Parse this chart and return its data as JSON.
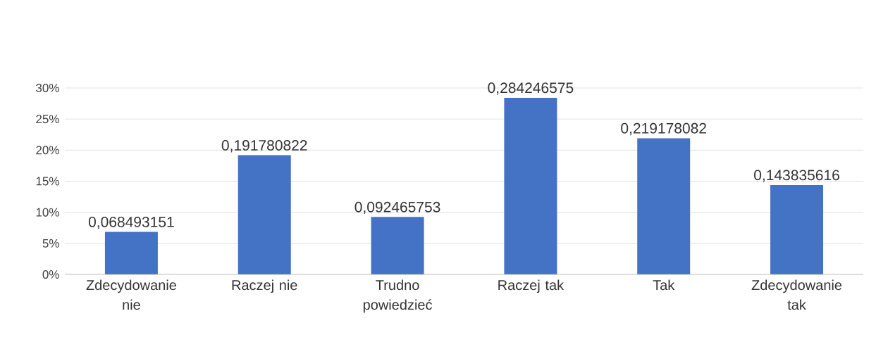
{
  "chart_data": {
    "type": "bar",
    "categories": [
      "Zdecydowanie nie",
      "Raczej nie",
      "Trudno powiedzieć",
      "Raczej tak",
      "Tak",
      "Zdecydowanie tak"
    ],
    "values": [
      0.068493151,
      0.191780822,
      0.092465753,
      0.284246575,
      0.219178082,
      0.143835616
    ],
    "value_labels": [
      "0,068493151",
      "0,191780822",
      "0,092465753",
      "0,284246575",
      "0,219178082",
      "0,143835616"
    ],
    "color": "#4472c4",
    "ylim": [
      0,
      0.3
    ],
    "yticks": [
      {
        "value": 0,
        "label": "0%"
      },
      {
        "value": 0.05,
        "label": "5%"
      },
      {
        "value": 0.1,
        "label": "10%"
      },
      {
        "value": 0.15,
        "label": "15%"
      },
      {
        "value": 0.2,
        "label": "20%"
      },
      {
        "value": 0.25,
        "label": "25%"
      },
      {
        "value": 0.3,
        "label": "30%"
      }
    ],
    "grid": "y"
  }
}
